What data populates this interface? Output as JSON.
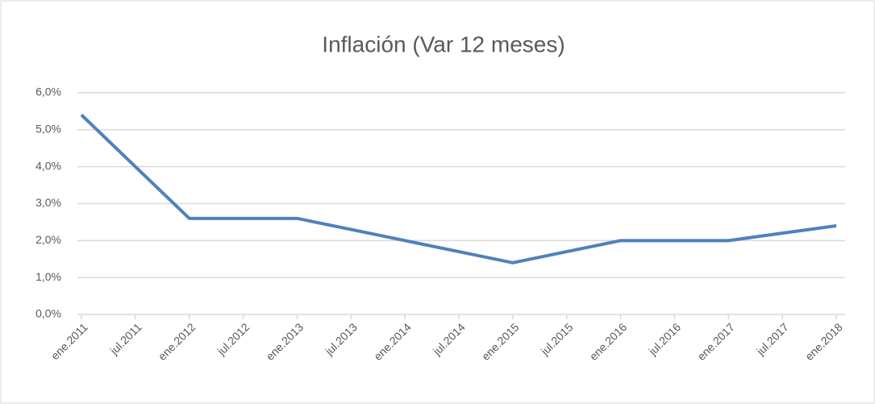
{
  "chart_data": {
    "type": "line",
    "title": "Inflación (Var 12 meses)",
    "categories": [
      "ene.2011",
      "jul.2011",
      "ene.2012",
      "jul.2012",
      "ene.2013",
      "jul.2013",
      "ene.2014",
      "jul.2014",
      "ene.2015",
      "jul.2015",
      "ene.2016",
      "jul.2016",
      "ene.2017",
      "jul.2017",
      "ene.2018"
    ],
    "series": [
      {
        "name": "Inflación",
        "color": "#4f81bd",
        "values": [
          5.4,
          4.0,
          2.6,
          2.6,
          2.6,
          2.3,
          2.0,
          1.7,
          1.4,
          1.7,
          2.0,
          2.0,
          2.0,
          2.2,
          2.4
        ]
      }
    ],
    "ylim": [
      0,
      6
    ],
    "yticks": [
      {
        "value": 0,
        "label": "0,0%"
      },
      {
        "value": 1,
        "label": "1,0%"
      },
      {
        "value": 2,
        "label": "2,0%"
      },
      {
        "value": 3,
        "label": "3,0%"
      },
      {
        "value": 4,
        "label": "4,0%"
      },
      {
        "value": 5,
        "label": "5,0%"
      },
      {
        "value": 6,
        "label": "6,0%"
      }
    ],
    "grid": true
  }
}
